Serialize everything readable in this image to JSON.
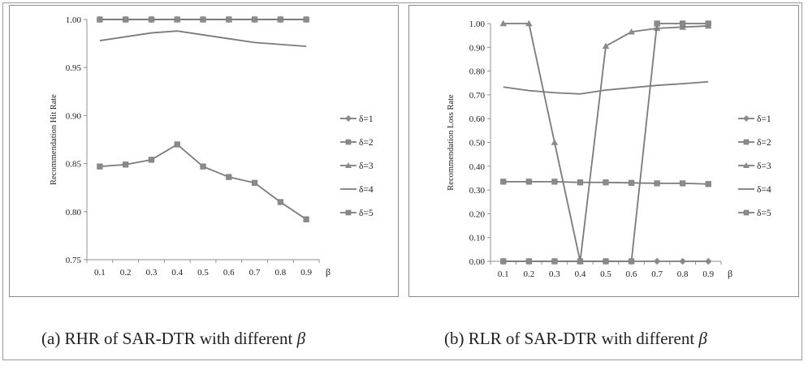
{
  "chart_data": [
    {
      "type": "line",
      "caption_text": "(a) RHR of SAR-DTR with different ",
      "caption_symbol": "β",
      "ylabel": "Recommendation Hit Rate",
      "xlabel": "β",
      "x": [
        "0.1",
        "0.2",
        "0.3",
        "0.4",
        "0.5",
        "0.6",
        "0.7",
        "0.8",
        "0.9"
      ],
      "ylim": [
        0.75,
        1.0
      ],
      "yticks": [
        "0.75",
        "0.80",
        "0.85",
        "0.90",
        "0.95",
        "1.00"
      ],
      "grid": false,
      "legend_position": "right",
      "series": [
        {
          "name": "δ=1",
          "marker": "diamond",
          "values": [
            1.0,
            1.0,
            1.0,
            1.0,
            1.0,
            1.0,
            1.0,
            1.0,
            1.0
          ]
        },
        {
          "name": "δ=2",
          "marker": "square",
          "values": [
            1.0,
            1.0,
            1.0,
            1.0,
            1.0,
            1.0,
            1.0,
            1.0,
            1.0
          ]
        },
        {
          "name": "δ=3",
          "marker": "triangle",
          "values": [
            1.0,
            1.0,
            1.0,
            1.0,
            1.0,
            1.0,
            1.0,
            1.0,
            1.0
          ]
        },
        {
          "name": "δ=4",
          "marker": "none",
          "values": [
            0.978,
            0.982,
            0.986,
            0.988,
            0.984,
            0.98,
            0.976,
            0.974,
            0.972
          ]
        },
        {
          "name": "δ=5",
          "marker": "square",
          "values": [
            0.847,
            0.849,
            0.854,
            0.87,
            0.847,
            0.836,
            0.83,
            0.81,
            0.792
          ]
        }
      ]
    },
    {
      "type": "line",
      "caption_text": "(b) RLR of SAR-DTR with different ",
      "caption_symbol": "β",
      "ylabel": "Recommendation Loss Rate",
      "xlabel": "β",
      "x": [
        "0.1",
        "0.2",
        "0.3",
        "0.4",
        "0.5",
        "0.6",
        "0.7",
        "0.8",
        "0.9"
      ],
      "ylim": [
        0.0,
        1.0
      ],
      "yticks": [
        "0.00",
        "0.10",
        "0.20",
        "0.30",
        "0.40",
        "0.50",
        "0.60",
        "0.70",
        "0.80",
        "0.90",
        "1.00"
      ],
      "grid": false,
      "legend_position": "right",
      "series": [
        {
          "name": "δ=1",
          "marker": "diamond",
          "values": [
            0,
            0,
            0,
            0,
            0,
            0,
            0,
            0,
            0
          ]
        },
        {
          "name": "δ=2",
          "marker": "square",
          "values": [
            0.335,
            0.335,
            0.335,
            0.332,
            0.332,
            0.33,
            0.328,
            0.328,
            0.325
          ]
        },
        {
          "name": "δ=3",
          "marker": "triangle",
          "values": [
            1.0,
            1.0,
            0.5,
            0.0,
            0.905,
            0.965,
            0.98,
            0.985,
            0.99
          ]
        },
        {
          "name": "δ=4",
          "marker": "none",
          "values": [
            0.733,
            0.718,
            0.709,
            0.704,
            0.72,
            0.73,
            0.74,
            0.747,
            0.755
          ]
        },
        {
          "name": "δ=5",
          "marker": "square",
          "values": [
            0,
            0,
            0,
            0,
            0,
            0,
            1.0,
            1.0,
            1.0
          ]
        }
      ]
    }
  ]
}
